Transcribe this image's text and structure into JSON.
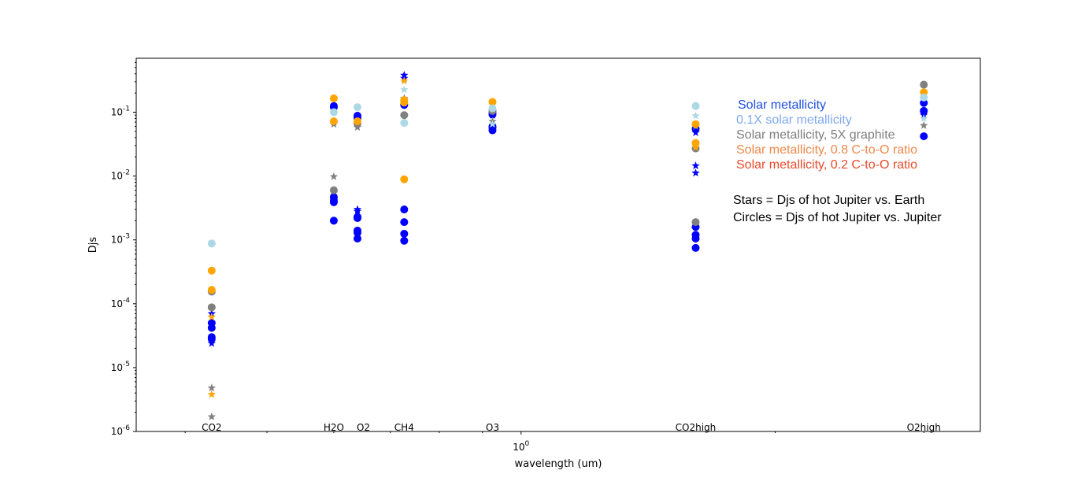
{
  "chart_data": {
    "type": "scatter",
    "xlabel": "wavelength (um)",
    "ylabel": "Djs",
    "x_scale": "log",
    "y_scale": "log",
    "xlim": [
      0.35,
      3.5
    ],
    "ylim": [
      1e-06,
      0.7
    ],
    "x_tick_labels": [
      {
        "value": 1.0,
        "label": "10^0"
      }
    ],
    "y_ticks": [
      {
        "value": 1e-06,
        "label": "10^-6"
      },
      {
        "value": 1e-05,
        "label": "10^-5"
      },
      {
        "value": 0.0001,
        "label": "10^-4"
      },
      {
        "value": 0.001,
        "label": "10^-3"
      },
      {
        "value": 0.01,
        "label": "10^-2"
      },
      {
        "value": 0.1,
        "label": "10^-1"
      }
    ],
    "band_labels": [
      {
        "label": "CO2",
        "x": 0.43
      },
      {
        "label": "H2O",
        "x": 0.6
      },
      {
        "label": "O2",
        "x": 0.64
      },
      {
        "label": "CH4",
        "x": 0.727
      },
      {
        "label": "O3",
        "x": 0.925
      },
      {
        "label": "CO2high",
        "x": 1.61
      },
      {
        "label": "O2high",
        "x": 3.0
      }
    ],
    "legend_entries": [
      {
        "label": "Solar metallicity",
        "color": "#1f4fe0"
      },
      {
        "label": "0.1X solar metallicity",
        "color": "#7fa8f0"
      },
      {
        "label": "Solar metallicity, 5X graphite",
        "color": "#7f7f7f"
      },
      {
        "label": "Solar metallicity, 0.8 C-to-O ratio",
        "color": "#f0884a"
      },
      {
        "label": "Solar metallicity, 0.2 C-to-O ratio",
        "color": "#e84a2a"
      }
    ],
    "notes": [
      "Stars = Djs of hot Jupiter vs. Earth",
      "Circles = Djs of hot Jupiter vs. Jupiter"
    ],
    "series": [
      {
        "marker": "circle",
        "color": "#0000ff",
        "points": [
          [
            0.43,
            5e-05
          ],
          [
            0.43,
            4.2e-05
          ],
          [
            0.43,
            3e-05
          ],
          [
            0.43,
            2.8e-05
          ],
          [
            0.6,
            0.125
          ],
          [
            0.6,
            0.12
          ],
          [
            0.6,
            0.0047
          ],
          [
            0.6,
            0.0042
          ],
          [
            0.6,
            0.0039
          ],
          [
            0.6,
            0.002
          ],
          [
            0.64,
            0.088
          ],
          [
            0.64,
            0.082
          ],
          [
            0.64,
            0.0023
          ],
          [
            0.64,
            0.0022
          ],
          [
            0.64,
            0.0014
          ],
          [
            0.64,
            0.0013
          ],
          [
            0.64,
            0.00105
          ],
          [
            0.727,
            0.13
          ],
          [
            0.727,
            0.003
          ],
          [
            0.727,
            0.0019
          ],
          [
            0.727,
            0.00125
          ],
          [
            0.727,
            0.00097
          ],
          [
            0.925,
            0.1
          ],
          [
            0.925,
            0.092
          ],
          [
            0.925,
            0.06
          ],
          [
            0.925,
            0.057
          ],
          [
            0.925,
            0.052
          ],
          [
            1.61,
            0.055
          ],
          [
            1.61,
            0.0016
          ],
          [
            1.61,
            0.0012
          ],
          [
            1.61,
            0.00105
          ],
          [
            1.61,
            0.00075
          ],
          [
            3.0,
            0.14
          ],
          [
            3.0,
            0.105
          ],
          [
            3.0,
            0.042
          ]
        ]
      },
      {
        "marker": "star",
        "color": "#0000ff",
        "points": [
          [
            0.43,
            7e-05
          ],
          [
            0.43,
            2.4e-05
          ],
          [
            0.6,
            0.07
          ],
          [
            0.64,
            0.003
          ],
          [
            0.64,
            0.0028
          ],
          [
            0.727,
            0.38
          ],
          [
            0.727,
            0.34
          ],
          [
            0.925,
            0.09
          ],
          [
            1.61,
            0.048
          ],
          [
            1.61,
            0.0145
          ],
          [
            1.61,
            0.0112
          ],
          [
            3.0,
            0.09
          ]
        ]
      },
      {
        "marker": "circle",
        "color": "#808080",
        "points": [
          [
            0.43,
            8.8e-05
          ],
          [
            0.43,
            0.000155
          ],
          [
            0.6,
            0.006
          ],
          [
            0.64,
            0.066
          ],
          [
            0.727,
            0.09
          ],
          [
            0.925,
            0.105
          ],
          [
            1.61,
            0.0019
          ],
          [
            1.61,
            0.027
          ],
          [
            3.0,
            0.27
          ]
        ]
      },
      {
        "marker": "star",
        "color": "#808080",
        "points": [
          [
            0.43,
            4.8e-06
          ],
          [
            0.43,
            1.7e-06
          ],
          [
            0.6,
            0.0098
          ],
          [
            0.6,
            0.065
          ],
          [
            0.64,
            0.058
          ],
          [
            0.727,
            0.165
          ],
          [
            0.925,
            0.072
          ],
          [
            1.61,
            0.06
          ],
          [
            3.0,
            0.062
          ]
        ]
      },
      {
        "marker": "circle",
        "color": "#ffa500",
        "points": [
          [
            0.43,
            0.00033
          ],
          [
            0.43,
            0.000165
          ],
          [
            0.6,
            0.165
          ],
          [
            0.6,
            0.072
          ],
          [
            0.64,
            0.072
          ],
          [
            0.727,
            0.0089
          ],
          [
            0.727,
            0.155
          ],
          [
            0.727,
            0.142
          ],
          [
            0.925,
            0.145
          ],
          [
            1.61,
            0.065
          ],
          [
            1.61,
            0.033
          ],
          [
            3.0,
            0.205
          ]
        ]
      },
      {
        "marker": "star",
        "color": "#ffa500",
        "points": [
          [
            0.43,
            3.8e-06
          ],
          [
            0.43,
            6.2e-05
          ],
          [
            0.727,
            0.31
          ],
          [
            1.61,
            0.028
          ]
        ]
      },
      {
        "marker": "circle",
        "color": "#add8e6",
        "points": [
          [
            0.43,
            0.00088
          ],
          [
            0.6,
            0.1
          ],
          [
            0.64,
            0.12
          ],
          [
            0.727,
            0.068
          ],
          [
            0.925,
            0.115
          ],
          [
            1.61,
            0.125
          ],
          [
            3.0,
            0.17
          ]
        ]
      },
      {
        "marker": "star",
        "color": "#add8e6",
        "points": [
          [
            0.727,
            0.225
          ],
          [
            0.925,
            0.065
          ],
          [
            1.61,
            0.088
          ],
          [
            3.0,
            0.08
          ]
        ]
      }
    ]
  }
}
